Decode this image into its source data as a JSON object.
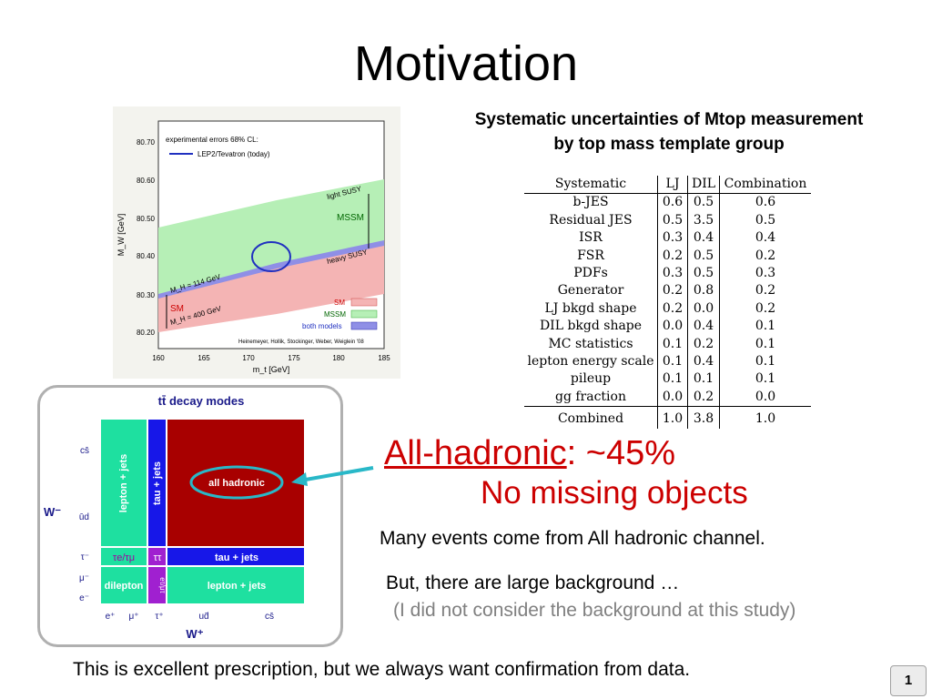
{
  "slide": {
    "title": "Motivation",
    "page_number": "1",
    "bottom_text": "This is excellent prescription, but we always want confirmation from data."
  },
  "table": {
    "title_line1": "Systematic uncertainties of Mtop measurement",
    "title_line2": "by top mass template group",
    "headers": [
      "Systematic",
      "LJ",
      "DIL",
      "Combination"
    ],
    "rows": [
      [
        "b-JES",
        "0.6",
        "0.5",
        "0.6"
      ],
      [
        "Residual JES",
        "0.5",
        "3.5",
        "0.5"
      ],
      [
        "ISR",
        "0.3",
        "0.4",
        "0.4"
      ],
      [
        "FSR",
        "0.2",
        "0.5",
        "0.2"
      ],
      [
        "PDFs",
        "0.3",
        "0.5",
        "0.3"
      ],
      [
        "Generator",
        "0.2",
        "0.8",
        "0.2"
      ],
      [
        "LJ bkgd shape",
        "0.2",
        "0.0",
        "0.2"
      ],
      [
        "DIL bkgd shape",
        "0.0",
        "0.4",
        "0.1"
      ],
      [
        "MC statistics",
        "0.1",
        "0.2",
        "0.1"
      ],
      [
        "lepton energy scale",
        "0.1",
        "0.4",
        "0.1"
      ],
      [
        "pileup",
        "0.1",
        "0.1",
        "0.1"
      ],
      [
        "gg fraction",
        "0.0",
        "0.2",
        "0.0"
      ]
    ],
    "total": [
      "Combined",
      "1.0",
      "3.8",
      "1.0"
    ]
  },
  "mw_plot": {
    "legend_title": "experimental errors 68% CL:",
    "legend_entry": "LEP2/Tevatron (today)",
    "y_label": "M_W [GeV]",
    "x_label": "m_t [GeV]",
    "y_ticks": [
      "80.70",
      "80.60",
      "80.50",
      "80.40",
      "80.30",
      "80.20"
    ],
    "x_ticks": [
      "160",
      "165",
      "170",
      "175",
      "180",
      "185"
    ],
    "labels": {
      "light_susy": "light SUSY",
      "mssm": "MSSM",
      "heavy_susy": "heavy SUSY",
      "mh114": "M_H = 114 GeV",
      "mh400": "M_H = 400 GeV",
      "sm": "SM"
    },
    "key": [
      "SM",
      "MSSM",
      "both models"
    ],
    "credit": "Heinemeyer, Hollik, Stockinger, Weber, Weiglein '08",
    "colors": {
      "sm": "#f4b4b4",
      "mssm": "#b6efb6",
      "both": "#8f8fe6",
      "ellipse": "#2030c0"
    }
  },
  "decay": {
    "title": "tt̄ decay modes",
    "lepton_jets": "lepton + jets",
    "tau_jets": "tau + jets",
    "all_hadronic": "all hadronic",
    "tau_e_mu": "τe/τμ",
    "tau_tau": "ττ",
    "dilepton": "dilepton",
    "e_tau": "eτ/μτ",
    "y_axis": [
      "cs̄",
      "ūd",
      "τ⁻",
      "μ⁻",
      "e⁻"
    ],
    "x_axis": [
      "e⁺",
      "μ⁺",
      "τ⁺",
      "ud̄",
      "cs̄"
    ],
    "w_minus": "W⁻",
    "w_plus": "W⁺",
    "colors": {
      "lj": "#1ee0a0",
      "tau": "#1717e8",
      "had": "#a80000",
      "arrow": "#29b8c8"
    }
  },
  "callouts": {
    "hadronic_label": "All-hadronic",
    "hadronic_value": ": ~45%",
    "no_missing": "No missing objects",
    "many_events": "Many events come from All hadronic channel.",
    "large_bg": "But, there are large background  …",
    "not_considered": "(I did not consider the background at this study)"
  }
}
